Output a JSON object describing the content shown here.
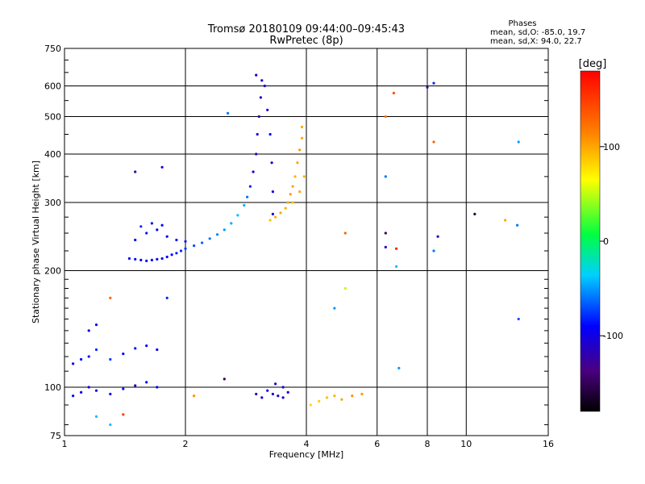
{
  "chart_data": {
    "type": "scatter",
    "title": "Tromsø 20180109 09:44:00–09:45:43",
    "subtitle": "RwPretec (8p)",
    "xlabel": "Frequency [MHz]",
    "ylabel": "Stationary phase Virtual Height [km]",
    "x_scale": "log",
    "y_scale": "log",
    "xlim": [
      1,
      16
    ],
    "ylim": [
      75,
      750
    ],
    "x_ticks": [
      1,
      2,
      4,
      6,
      8,
      10,
      16
    ],
    "x_tick_labels": [
      "1",
      "2",
      "4",
      "6",
      "8",
      "10",
      "16"
    ],
    "y_ticks": [
      75,
      100,
      200,
      300,
      400,
      500,
      600,
      750
    ],
    "y_tick_labels": [
      "75",
      "100",
      "200",
      "300",
      "400",
      "500",
      "600",
      "750"
    ],
    "grid": true,
    "colorbar": {
      "label": "[deg]",
      "range": [
        -180,
        180
      ],
      "ticks": [
        100,
        0,
        -100
      ],
      "tick_labels": [
        "100",
        "0",
        "-100"
      ]
    },
    "stats": {
      "heading": "Phases",
      "line_o": "mean, sd,O: -85.0, 19.7",
      "line_x": "mean, sd,X:  94.0, 22.7"
    },
    "series": [
      {
        "mode": "O",
        "points": [
          [
            1.45,
            215,
            -90
          ],
          [
            1.5,
            214,
            -95
          ],
          [
            1.55,
            213,
            -100
          ],
          [
            1.6,
            212,
            -95
          ],
          [
            1.65,
            213,
            -100
          ],
          [
            1.7,
            214,
            -95
          ],
          [
            1.75,
            215,
            -100
          ],
          [
            1.8,
            217,
            -95
          ],
          [
            1.85,
            220,
            -90
          ],
          [
            1.9,
            222,
            -85
          ],
          [
            1.95,
            225,
            -80
          ],
          [
            2.0,
            228,
            -75
          ],
          [
            2.1,
            232,
            -70
          ],
          [
            2.2,
            236,
            -65
          ],
          [
            2.3,
            242,
            -60
          ],
          [
            2.4,
            248,
            -55
          ],
          [
            2.5,
            255,
            -50
          ],
          [
            2.6,
            265,
            -45
          ],
          [
            2.7,
            278,
            -40
          ],
          [
            2.8,
            295,
            -45
          ],
          [
            2.85,
            310,
            -60
          ],
          [
            2.9,
            330,
            -80
          ],
          [
            2.95,
            360,
            -100
          ],
          [
            3.0,
            400,
            -110
          ],
          [
            3.02,
            450,
            -110
          ],
          [
            3.05,
            500,
            -115
          ],
          [
            3.08,
            560,
            -110
          ],
          [
            3.1,
            620,
            -105
          ],
          [
            3.0,
            640,
            -100
          ],
          [
            3.15,
            600,
            -105
          ],
          [
            3.2,
            520,
            -100
          ],
          [
            3.25,
            450,
            -95
          ],
          [
            3.28,
            380,
            -100
          ],
          [
            3.3,
            320,
            -95
          ],
          [
            3.3,
            280,
            -90
          ],
          [
            1.5,
            240,
            -90
          ],
          [
            1.6,
            250,
            -85
          ],
          [
            1.7,
            255,
            -90
          ],
          [
            1.8,
            245,
            -95
          ],
          [
            1.9,
            240,
            -90
          ],
          [
            2.0,
            238,
            -85
          ],
          [
            1.55,
            260,
            -80
          ],
          [
            1.65,
            265,
            -85
          ],
          [
            1.75,
            262,
            -90
          ],
          [
            1.05,
            95,
            -90
          ],
          [
            1.1,
            97,
            -95
          ],
          [
            1.15,
            100,
            -100
          ],
          [
            1.2,
            98,
            -95
          ],
          [
            1.3,
            96,
            -90
          ],
          [
            1.4,
            99,
            -85
          ],
          [
            1.5,
            101,
            -100
          ],
          [
            1.6,
            103,
            -95
          ],
          [
            1.7,
            100,
            -90
          ],
          [
            1.05,
            115,
            -95
          ],
          [
            1.1,
            118,
            -90
          ],
          [
            1.15,
            120,
            -85
          ],
          [
            1.2,
            125,
            -80
          ],
          [
            1.3,
            118,
            -75
          ],
          [
            1.4,
            122,
            -90
          ],
          [
            1.5,
            126,
            -85
          ],
          [
            1.6,
            128,
            -90
          ],
          [
            1.7,
            125,
            -95
          ],
          [
            1.15,
            140,
            -100
          ],
          [
            1.2,
            145,
            -95
          ],
          [
            3.2,
            98,
            -100
          ],
          [
            3.3,
            96,
            -105
          ],
          [
            3.4,
            95,
            -110
          ],
          [
            3.5,
            94,
            -105
          ],
          [
            3.6,
            97,
            -100
          ],
          [
            3.35,
            102,
            -110
          ],
          [
            3.5,
            100,
            -105
          ],
          [
            3.0,
            96,
            -110
          ],
          [
            3.1,
            94,
            -100
          ]
        ]
      },
      {
        "mode": "X",
        "points": [
          [
            3.25,
            270,
            90
          ],
          [
            3.35,
            275,
            95
          ],
          [
            3.45,
            282,
            100
          ],
          [
            3.55,
            290,
            95
          ],
          [
            3.6,
            300,
            100
          ],
          [
            3.65,
            315,
            105
          ],
          [
            3.7,
            330,
            100
          ],
          [
            3.75,
            350,
            95
          ],
          [
            3.8,
            380,
            100
          ],
          [
            3.85,
            410,
            105
          ],
          [
            3.9,
            440,
            100
          ],
          [
            3.9,
            470,
            100
          ],
          [
            3.95,
            350,
            95
          ],
          [
            3.85,
            320,
            100
          ],
          [
            3.7,
            300,
            90
          ],
          [
            4.1,
            90,
            80
          ],
          [
            4.3,
            92,
            85
          ],
          [
            4.5,
            94,
            90
          ],
          [
            4.7,
            95,
            95
          ],
          [
            4.9,
            93,
            100
          ],
          [
            5.2,
            95,
            110
          ],
          [
            5.5,
            96,
            105
          ]
        ]
      },
      {
        "mode": "noise",
        "points": [
          [
            1.3,
            170,
            130
          ],
          [
            1.5,
            360,
            -120
          ],
          [
            1.75,
            370,
            -100
          ],
          [
            1.8,
            170,
            -80
          ],
          [
            2.1,
            95,
            110
          ],
          [
            2.5,
            105,
            -150
          ],
          [
            2.55,
            510,
            -60
          ],
          [
            5.0,
            250,
            130
          ],
          [
            5.0,
            180,
            50
          ],
          [
            4.7,
            160,
            -50
          ],
          [
            6.3,
            500,
            120
          ],
          [
            6.6,
            575,
            140
          ],
          [
            6.3,
            350,
            -60
          ],
          [
            6.3,
            250,
            -150
          ],
          [
            6.3,
            230,
            -110
          ],
          [
            6.7,
            228,
            165
          ],
          [
            6.7,
            205,
            -40
          ],
          [
            6.8,
            112,
            -50
          ],
          [
            8.0,
            595,
            -130
          ],
          [
            8.3,
            610,
            -80
          ],
          [
            8.3,
            430,
            130
          ],
          [
            8.5,
            245,
            -120
          ],
          [
            8.3,
            225,
            -60
          ],
          [
            10.5,
            280,
            -160
          ],
          [
            12.5,
            270,
            100
          ],
          [
            13.5,
            430,
            -50
          ],
          [
            13.4,
            262,
            -60
          ],
          [
            13.5,
            150,
            -70
          ],
          [
            1.3,
            80,
            -40
          ],
          [
            1.4,
            85,
            150
          ],
          [
            1.2,
            84,
            -40
          ]
        ]
      }
    ]
  }
}
